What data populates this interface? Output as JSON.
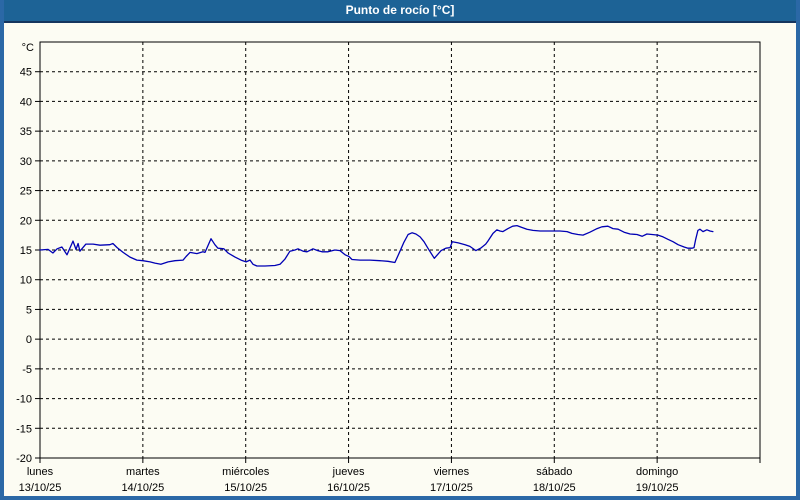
{
  "window": {
    "title": "Punto de rocío [°C]"
  },
  "colors": {
    "titlebar_bg": "#1d6396",
    "titlebar_text": "#ffffff",
    "frame_border": "#2b68a6",
    "content_bg": "#fcfcf3",
    "grid_and_axis": "#000000",
    "series_line": "#0000b4"
  },
  "chart_data": {
    "type": "line",
    "title": "Punto de rocío [°C]",
    "ylabel": "°C",
    "xlabel": "",
    "ylim": [
      -20,
      50
    ],
    "y_ticks": [
      45,
      40,
      35,
      30,
      25,
      20,
      15,
      10,
      5,
      0,
      -5,
      -10,
      -15,
      -20
    ],
    "grid": true,
    "legend_position": "none",
    "x_axis_days": [
      {
        "name": "lunes",
        "date": "13/10/25"
      },
      {
        "name": "martes",
        "date": "14/10/25"
      },
      {
        "name": "miércoles",
        "date": "15/10/25"
      },
      {
        "name": "jueves",
        "date": "16/10/25"
      },
      {
        "name": "viernes",
        "date": "17/10/25"
      },
      {
        "name": "sábado",
        "date": "18/10/25"
      },
      {
        "name": "domingo",
        "date": "19/10/25"
      }
    ],
    "hours_per_day": 24,
    "x_range_hours": [
      0,
      168
    ],
    "series": [
      {
        "name": "Punto de rocío",
        "color": "#0000b4",
        "points_hour_value": [
          [
            0,
            15.0
          ],
          [
            1.9,
            15.1
          ],
          [
            3.0,
            14.5
          ],
          [
            4.0,
            15.2
          ],
          [
            5.1,
            15.5
          ],
          [
            6.3,
            14.2
          ],
          [
            7.7,
            16.5
          ],
          [
            8.4,
            15.1
          ],
          [
            8.9,
            16.1
          ],
          [
            9.3,
            14.8
          ],
          [
            10.7,
            16.0
          ],
          [
            12.4,
            16.0
          ],
          [
            14.0,
            15.8
          ],
          [
            16.3,
            15.9
          ],
          [
            17.0,
            16.1
          ],
          [
            18.0,
            15.4
          ],
          [
            19.4,
            14.6
          ],
          [
            21.0,
            13.8
          ],
          [
            22.6,
            13.3
          ],
          [
            24.0,
            13.2
          ],
          [
            25.7,
            13.0
          ],
          [
            26.8,
            12.8
          ],
          [
            28.2,
            12.6
          ],
          [
            29.9,
            13.0
          ],
          [
            31.5,
            13.2
          ],
          [
            33.4,
            13.3
          ],
          [
            34.1,
            13.9
          ],
          [
            35.0,
            14.6
          ],
          [
            36.6,
            14.4
          ],
          [
            38.0,
            14.7
          ],
          [
            38.5,
            14.6
          ],
          [
            39.9,
            16.9
          ],
          [
            40.8,
            15.9
          ],
          [
            41.5,
            15.3
          ],
          [
            42.9,
            15.2
          ],
          [
            43.9,
            14.5
          ],
          [
            45.5,
            13.8
          ],
          [
            46.9,
            13.3
          ],
          [
            48.1,
            13.0
          ],
          [
            49.0,
            13.3
          ],
          [
            49.7,
            12.6
          ],
          [
            50.6,
            12.3
          ],
          [
            52.5,
            12.3
          ],
          [
            54.8,
            12.4
          ],
          [
            56.0,
            12.6
          ],
          [
            57.2,
            13.5
          ],
          [
            58.3,
            14.8
          ],
          [
            59.5,
            15.0
          ],
          [
            60.2,
            15.2
          ],
          [
            61.4,
            14.8
          ],
          [
            62.3,
            14.7
          ],
          [
            63.7,
            15.2
          ],
          [
            64.8,
            14.9
          ],
          [
            65.8,
            14.7
          ],
          [
            67.2,
            14.7
          ],
          [
            68.8,
            15.0
          ],
          [
            70.0,
            14.9
          ],
          [
            71.2,
            14.2
          ],
          [
            72.1,
            13.9
          ],
          [
            72.8,
            13.4
          ],
          [
            74.7,
            13.3
          ],
          [
            77.0,
            13.3
          ],
          [
            79.3,
            13.2
          ],
          [
            81.2,
            13.1
          ],
          [
            82.8,
            12.9
          ],
          [
            84.0,
            14.8
          ],
          [
            84.9,
            16.3
          ],
          [
            85.9,
            17.6
          ],
          [
            86.8,
            17.9
          ],
          [
            87.7,
            17.7
          ],
          [
            88.7,
            17.2
          ],
          [
            89.6,
            16.4
          ],
          [
            90.5,
            15.3
          ],
          [
            92.0,
            13.6
          ],
          [
            93.6,
            14.9
          ],
          [
            94.7,
            15.3
          ],
          [
            95.7,
            15.4
          ],
          [
            96.2,
            16.4
          ],
          [
            97.6,
            16.2
          ],
          [
            99.2,
            15.9
          ],
          [
            100.3,
            15.6
          ],
          [
            101.7,
            14.9
          ],
          [
            102.8,
            15.3
          ],
          [
            104.0,
            16.0
          ],
          [
            104.5,
            16.5
          ],
          [
            105.7,
            17.8
          ],
          [
            106.6,
            18.4
          ],
          [
            107.3,
            18.2
          ],
          [
            108.0,
            18.1
          ],
          [
            109.2,
            18.6
          ],
          [
            110.3,
            19.0
          ],
          [
            111.3,
            19.1
          ],
          [
            112.4,
            18.8
          ],
          [
            113.6,
            18.5
          ],
          [
            115.0,
            18.3
          ],
          [
            116.7,
            18.2
          ],
          [
            118.5,
            18.2
          ],
          [
            119.9,
            18.2
          ],
          [
            121.3,
            18.2
          ],
          [
            123.0,
            18.1
          ],
          [
            124.1,
            17.8
          ],
          [
            125.5,
            17.6
          ],
          [
            126.7,
            17.5
          ],
          [
            128.3,
            18.0
          ],
          [
            130.0,
            18.6
          ],
          [
            131.1,
            18.9
          ],
          [
            132.5,
            19.0
          ],
          [
            133.7,
            18.6
          ],
          [
            134.9,
            18.5
          ],
          [
            136.3,
            18.0
          ],
          [
            137.7,
            17.7
          ],
          [
            139.3,
            17.6
          ],
          [
            140.5,
            17.3
          ],
          [
            141.6,
            17.7
          ],
          [
            142.8,
            17.6
          ],
          [
            144.2,
            17.5
          ],
          [
            145.4,
            17.2
          ],
          [
            146.5,
            16.8
          ],
          [
            147.7,
            16.4
          ],
          [
            148.9,
            15.9
          ],
          [
            150.3,
            15.5
          ],
          [
            151.2,
            15.3
          ],
          [
            152.1,
            15.3
          ],
          [
            152.6,
            15.4
          ],
          [
            153.0,
            16.8
          ],
          [
            153.5,
            18.3
          ],
          [
            154.0,
            18.5
          ],
          [
            154.7,
            18.1
          ],
          [
            155.6,
            18.4
          ],
          [
            156.3,
            18.2
          ],
          [
            157.0,
            18.1
          ]
        ]
      }
    ]
  }
}
